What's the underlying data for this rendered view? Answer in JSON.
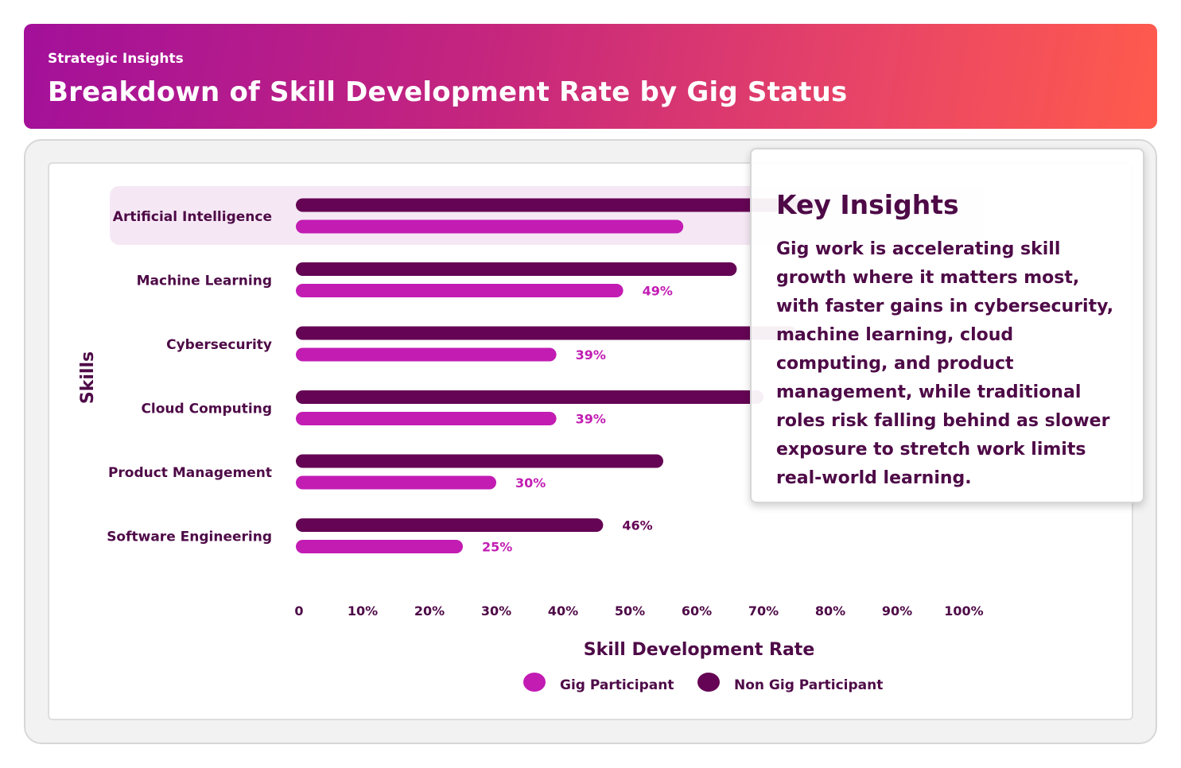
{
  "header": {
    "eyebrow": "Strategic Insights",
    "title": "Breakdown of Skill Development Rate by Gig Status"
  },
  "insights": {
    "title": "Key Insights",
    "body": "Gig work is accelerating skill growth where it matters most, with faster gains in cybersecurity, machine learning, cloud computing, and product management, while traditional roles risk falling behind as slower exposure to stretch work limits real-world learning."
  },
  "colors": {
    "gig": "#c21cb3",
    "non_gig": "#650454",
    "highlight_row": "#f5e8f4",
    "text": "#4e0a47"
  },
  "chart_data": {
    "type": "bar",
    "orientation": "horizontal",
    "categories": [
      "Artificial Intelligence",
      "Machine Learning",
      "Cybersecurity",
      "Cloud Computing",
      "Product Management",
      "Software Engineering"
    ],
    "series": [
      {
        "name": "Non Gig Participant",
        "color": "#650454",
        "values": [
          78,
          66,
          75,
          70,
          55,
          46
        ],
        "labels": [
          "",
          "",
          "",
          "",
          "",
          "46%"
        ]
      },
      {
        "name": "Gig Participant",
        "color": "#c21cb3",
        "values": [
          58,
          49,
          39,
          39,
          30,
          25
        ],
        "labels": [
          "",
          "49%",
          "39%",
          "39%",
          "30%",
          "25%"
        ]
      }
    ],
    "xlabel": "Skill Development Rate",
    "ylabel": "Skills",
    "xticks": [
      "0",
      "10%",
      "20%",
      "30%",
      "40%",
      "50%",
      "60%",
      "70%",
      "80%",
      "90%",
      "100%"
    ],
    "xlim": [
      0,
      100
    ],
    "legend": [
      {
        "name": "Gig Participant",
        "color": "#c21cb3"
      },
      {
        "name": "Non Gig Participant",
        "color": "#650454"
      }
    ],
    "legend_position": "bottom",
    "highlighted_category": "Artificial Intelligence",
    "grid": false
  }
}
